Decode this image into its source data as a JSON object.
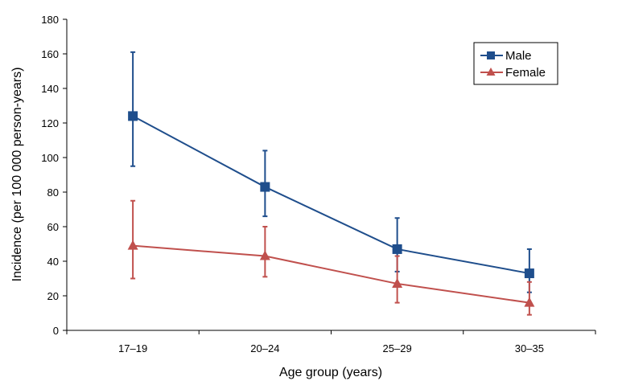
{
  "chart_data": {
    "type": "line",
    "xlabel": "Age group (years)",
    "ylabel": "Incidence (per 100 000 person-years)",
    "ylim": [
      0,
      180
    ],
    "yticks": [
      0,
      20,
      40,
      60,
      80,
      100,
      120,
      140,
      160,
      180
    ],
    "categories": [
      "17–19",
      "20–24",
      "25–29",
      "30–35"
    ],
    "grid": false,
    "legend_position": "top-right",
    "series": [
      {
        "name": "Male",
        "color": "#1f4e8c",
        "marker": "square",
        "values": [
          124,
          83,
          47,
          33
        ],
        "error_low": [
          95,
          66,
          34,
          22
        ],
        "error_high": [
          161,
          104,
          65,
          47
        ]
      },
      {
        "name": "Female",
        "color": "#c0504d",
        "marker": "triangle",
        "values": [
          49,
          43,
          27,
          16
        ],
        "error_low": [
          30,
          31,
          16,
          9
        ],
        "error_high": [
          75,
          60,
          43,
          28
        ]
      }
    ]
  }
}
